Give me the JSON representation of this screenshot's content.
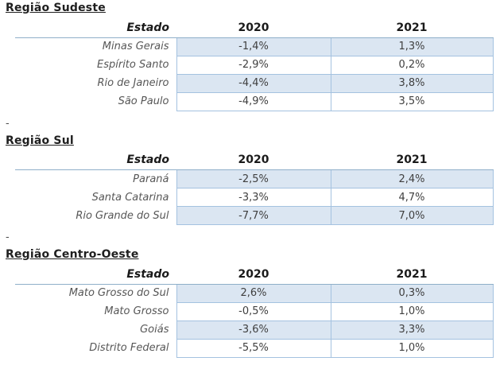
{
  "colors": {
    "row_fill_blue": "#dbe6f2",
    "cell_border_blue": "#a4c2e0",
    "header_rule_blue": "#8fafc9",
    "title_text": "#1f1f1f",
    "state_text": "#575757",
    "value_text": "#3f3f3f"
  },
  "columns": {
    "state_header": "Estado",
    "year1": "2020",
    "year2": "2021"
  },
  "separator": "-",
  "regions": [
    {
      "title": "Região Sudeste",
      "rows": [
        {
          "state": "Minas Gerais",
          "y2020": "-1,4%",
          "y2021": "1,3%"
        },
        {
          "state": "Espírito Santo",
          "y2020": "-2,9%",
          "y2021": "0,2%"
        },
        {
          "state": "Rio de Janeiro",
          "y2020": "-4,4%",
          "y2021": "3,8%"
        },
        {
          "state": "São Paulo",
          "y2020": "-4,9%",
          "y2021": "3,5%"
        }
      ]
    },
    {
      "title": "Região Sul",
      "rows": [
        {
          "state": "Paraná",
          "y2020": "-2,5%",
          "y2021": "2,4%"
        },
        {
          "state": "Santa Catarina",
          "y2020": "-3,3%",
          "y2021": "4,7%"
        },
        {
          "state": "Rio Grande do Sul",
          "y2020": "-7,7%",
          "y2021": "7,0%"
        }
      ]
    },
    {
      "title": "Região Centro-Oeste",
      "rows": [
        {
          "state": "Mato Grosso do Sul",
          "y2020": "2,6%",
          "y2021": "0,3%"
        },
        {
          "state": "Mato Grosso",
          "y2020": "-0,5%",
          "y2021": "1,0%"
        },
        {
          "state": "Goiás",
          "y2020": "-3,6%",
          "y2021": "3,3%"
        },
        {
          "state": "Distrito Federal",
          "y2020": "-5,5%",
          "y2021": "1,0%"
        }
      ]
    }
  ]
}
